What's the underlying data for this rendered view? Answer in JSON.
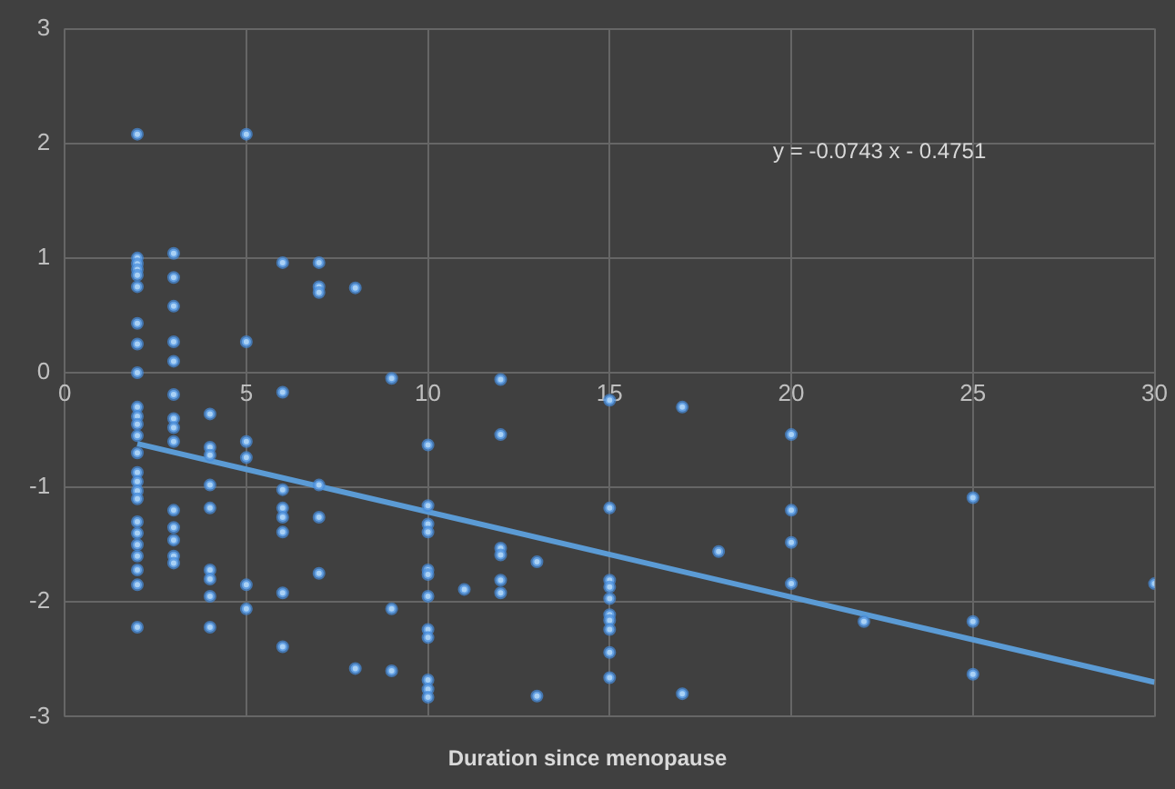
{
  "chart_data": {
    "type": "scatter",
    "xlabel": "Duration since menopause",
    "xlim": [
      0,
      30
    ],
    "ylim": [
      -3,
      3
    ],
    "xticks": [
      0,
      5,
      10,
      15,
      20,
      25,
      30
    ],
    "yticks": [
      -3,
      -2,
      -1,
      0,
      1,
      2,
      3
    ],
    "grid": true,
    "annotations": [
      "y = -0.0743 x - 0.4751"
    ],
    "series": [
      {
        "marker": "circle",
        "color": "#a9d1f5",
        "x": [
          2,
          2,
          2,
          2,
          2,
          2,
          2,
          2,
          2,
          2,
          2,
          2,
          2,
          2,
          2,
          2,
          2,
          2,
          2,
          2,
          2,
          2,
          2,
          2,
          2,
          3,
          3,
          3,
          3,
          3,
          3,
          3,
          3,
          3,
          3,
          3,
          3,
          3,
          3,
          4,
          4,
          4,
          4,
          4,
          4,
          4,
          4,
          4,
          5,
          5,
          5,
          5,
          5,
          5,
          6,
          6,
          6,
          6,
          6,
          6,
          6,
          6,
          7,
          7,
          7,
          7,
          7,
          7,
          8,
          8,
          9,
          9,
          9,
          10,
          10,
          10,
          10,
          10,
          10,
          10,
          10,
          10,
          10,
          10,
          10,
          11,
          12,
          12,
          12,
          12,
          12,
          12,
          13,
          13,
          15,
          15,
          15,
          15,
          15,
          15,
          15,
          15,
          15,
          15,
          17,
          17,
          18,
          20,
          20,
          20,
          20,
          22,
          25,
          25,
          25,
          30
        ],
        "values": [
          2.08,
          1.0,
          0.95,
          0.9,
          0.85,
          0.75,
          0.43,
          0.25,
          0.0,
          -0.3,
          -0.38,
          -0.45,
          -0.55,
          -0.7,
          -0.87,
          -0.95,
          -1.03,
          -1.1,
          -1.3,
          -1.4,
          -1.5,
          -1.6,
          -1.72,
          -1.85,
          -2.22,
          1.04,
          0.83,
          0.58,
          0.27,
          0.1,
          -0.19,
          -0.4,
          -0.48,
          -0.6,
          -1.2,
          -1.35,
          -1.46,
          -1.6,
          -1.66,
          -0.36,
          -0.65,
          -0.72,
          -0.98,
          -1.18,
          -1.72,
          -1.8,
          -1.95,
          -2.22,
          2.08,
          0.27,
          -0.6,
          -0.74,
          -1.85,
          -2.06,
          0.96,
          -0.17,
          -1.02,
          -1.18,
          -1.26,
          -1.39,
          -1.92,
          -2.39,
          0.96,
          0.75,
          0.7,
          -0.98,
          -1.26,
          -1.75,
          0.74,
          -2.58,
          -0.05,
          -2.06,
          -2.6,
          -0.63,
          -1.16,
          -1.32,
          -1.39,
          -1.72,
          -1.76,
          -1.95,
          -2.24,
          -2.31,
          -2.68,
          -2.76,
          -2.83,
          -1.89,
          -0.06,
          -0.54,
          -1.53,
          -1.59,
          -1.81,
          -1.92,
          -1.65,
          -2.82,
          -0.24,
          -1.18,
          -1.81,
          -1.87,
          -1.97,
          -2.11,
          -2.16,
          -2.24,
          -2.44,
          -2.66,
          -0.3,
          -2.8,
          -1.56,
          -0.54,
          -1.2,
          -1.48,
          -1.84,
          -2.17,
          -1.09,
          -2.17,
          -2.63,
          -1.84
        ]
      },
      {
        "type": "line",
        "marker": "none",
        "line_style": "solid",
        "color": "#5b9bd5",
        "x": [
          2,
          30
        ],
        "values": [
          -0.62,
          -2.7
        ]
      }
    ]
  }
}
